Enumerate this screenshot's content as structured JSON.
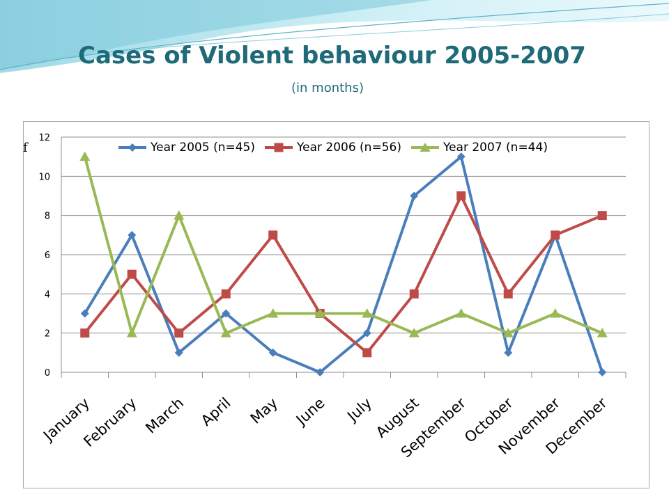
{
  "slide": {
    "title": "Cases of Violent behaviour 2005-2007",
    "subtitle": "(in months)"
  },
  "chart_data": {
    "type": "line",
    "title": "",
    "ylabel": "f",
    "xlabel": "",
    "ylim": [
      0,
      12
    ],
    "yticks": [
      0,
      2,
      4,
      6,
      8,
      10,
      12
    ],
    "grid": "horizontal",
    "legend_position": "top",
    "categories": [
      "January",
      "February",
      "March",
      "April",
      "May",
      "June",
      "July",
      "August",
      "September",
      "October",
      "November",
      "December"
    ],
    "series": [
      {
        "name": "Year 2005 (n=45)",
        "color": "#4a7ebb",
        "marker": "diamond",
        "values": [
          3,
          7,
          1,
          3,
          1,
          0,
          2,
          9,
          11,
          1,
          7,
          0
        ]
      },
      {
        "name": "Year 2006 (n=56)",
        "color": "#be4b48",
        "marker": "square",
        "values": [
          2,
          5,
          2,
          4,
          7,
          3,
          1,
          4,
          9,
          4,
          7,
          8
        ]
      },
      {
        "name": "Year 2007 (n=44)",
        "color": "#98b954",
        "marker": "triangle",
        "values": [
          11,
          2,
          8,
          2,
          3,
          3,
          3,
          2,
          3,
          2,
          3,
          2
        ]
      }
    ]
  }
}
